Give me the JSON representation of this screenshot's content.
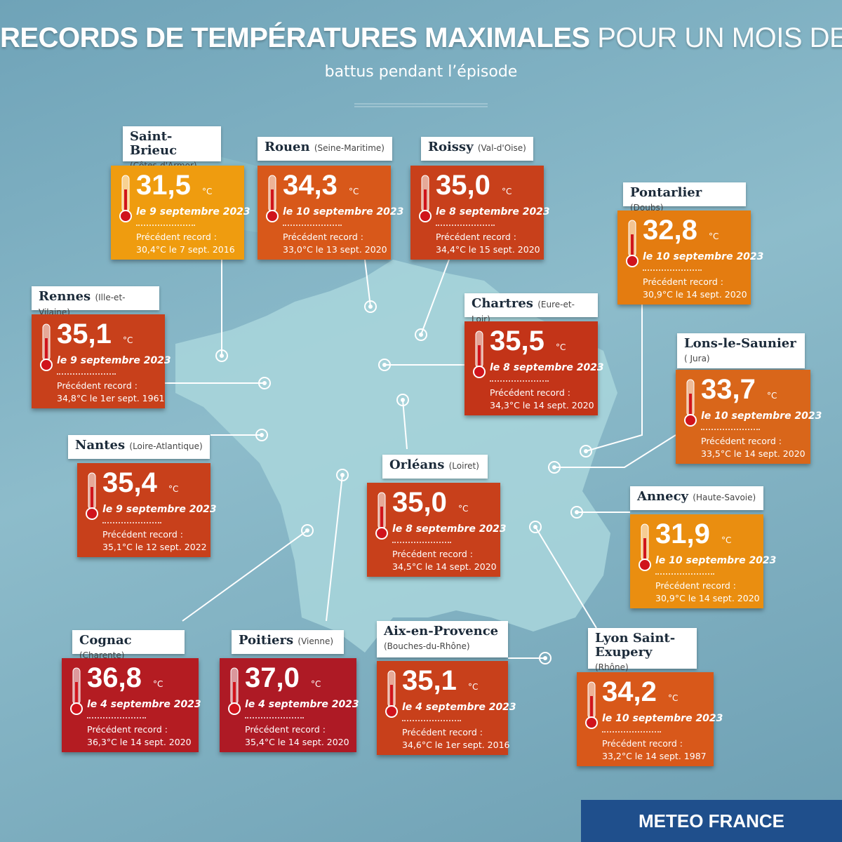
{
  "header": {
    "title_bold": "RECORDS DE TEMPÉRATURES MAXIMALES",
    "title_light": "POUR UN MOIS DE SEPTEMBRE",
    "subtitle": "battus pendant l’épisode"
  },
  "unit": "°C",
  "previous_label": "Précédent record :",
  "cards": [
    {
      "city": "Saint-Brieuc",
      "department": "(Côtes-d'Armor)",
      "value": "31,5",
      "date": "le 9 septembre 2023",
      "previous": "30,4°C le 7 sept. 2016"
    },
    {
      "city": "Rouen",
      "department": "(Seine-Maritime)",
      "value": "34,3",
      "date": "le 10 septembre 2023",
      "previous": "33,0°C le 13 sept. 2020"
    },
    {
      "city": "Roissy",
      "department": "(Val-d'Oise)",
      "value": "35,0",
      "date": "le 8 septembre 2023",
      "previous": "34,4°C le 15 sept. 2020"
    },
    {
      "city": "Pontarlier",
      "department": "(Doubs)",
      "value": "32,8",
      "date": "le 10 septembre 2023",
      "previous": "30,9°C le 14 sept. 2020"
    },
    {
      "city": "Rennes",
      "department": "(Ille-et-Vilaine)",
      "value": "35,1",
      "date": "le 9 septembre 2023",
      "previous": "34,8°C le 1er sept. 1961"
    },
    {
      "city": "Chartres",
      "department": "(Eure-et-Loir)",
      "value": "35,5",
      "date": "le 8 septembre 2023",
      "previous": "34,3°C le 14 sept. 2020"
    },
    {
      "city": "Lons-le-Saunier",
      "department": "( Jura)",
      "value": "33,7",
      "date": "le 10 septembre 2023",
      "previous": "33,5°C le 14 sept. 2020"
    },
    {
      "city": "Nantes",
      "department": "(Loire-Atlantique)",
      "value": "35,4",
      "date": "le 9 septembre 2023",
      "previous": "35,1°C le 12 sept. 2022"
    },
    {
      "city": "Orléans",
      "department": "(Loiret)",
      "value": "35,0",
      "date": "le 8 septembre 2023",
      "previous": "34,5°C le 14 sept. 2020"
    },
    {
      "city": "Annecy",
      "department": "(Haute-Savoie)",
      "value": "31,9",
      "date": "le 10 septembre 2023",
      "previous": "30,9°C le 14 sept. 2020"
    },
    {
      "city": "Cognac",
      "department": "(Charente)",
      "value": "36,8",
      "date": "le 4 septembre 2023",
      "previous": "36,3°C le 14 sept. 2020"
    },
    {
      "city": "Poitiers",
      "department": "(Vienne)",
      "value": "37,0",
      "date": "le 4 septembre 2023",
      "previous": "35,4°C le 14 sept. 2020"
    },
    {
      "city": "Aix-en-Provence",
      "department": "(Bouches-du-Rhône)",
      "value": "35,1",
      "date": "le 4 septembre 2023",
      "previous": "34,6°C le 1er sept. 2016"
    },
    {
      "city": "Lyon Saint-Exupery",
      "department": "(Rhône)",
      "value": "34,2",
      "date": "le 10 septembre 2023",
      "previous": "33,2°C le 14 sept. 1987"
    }
  ],
  "footer": {
    "brand": "METEO FRANCE"
  }
}
